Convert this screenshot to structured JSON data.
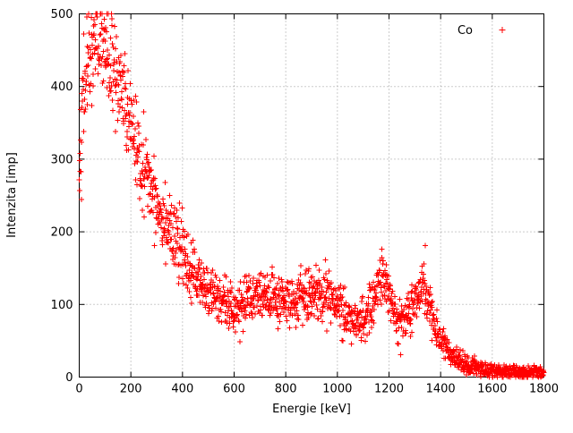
{
  "chart_data": {
    "type": "scatter",
    "title": "",
    "xlabel": "Energie [keV]",
    "ylabel": "Intenzita [imp]",
    "xlim": [
      0,
      1800
    ],
    "ylim": [
      0,
      500
    ],
    "xticks": [
      0,
      200,
      400,
      600,
      800,
      1000,
      1200,
      1400,
      1600,
      1800
    ],
    "yticks": [
      0,
      100,
      200,
      300,
      400,
      500
    ],
    "grid": true,
    "legend_position": "top-right-inside",
    "marker": "plus",
    "marker_color": "#ff0000",
    "series": [
      {
        "name": "Co",
        "color": "#ff0000",
        "sample_step_keV": 1,
        "noise_seed": 42,
        "noise_factor": 1.7,
        "envelope": [
          [
            0,
            300
          ],
          [
            5,
            330
          ],
          [
            20,
            400
          ],
          [
            40,
            445
          ],
          [
            60,
            460
          ],
          [
            80,
            465
          ],
          [
            100,
            450
          ],
          [
            120,
            435
          ],
          [
            150,
            405
          ],
          [
            180,
            370
          ],
          [
            210,
            335
          ],
          [
            240,
            300
          ],
          [
            270,
            268
          ],
          [
            300,
            242
          ],
          [
            330,
            220
          ],
          [
            360,
            198
          ],
          [
            390,
            175
          ],
          [
            420,
            155
          ],
          [
            450,
            138
          ],
          [
            480,
            125
          ],
          [
            510,
            115
          ],
          [
            540,
            107
          ],
          [
            570,
            100
          ],
          [
            600,
            96
          ],
          [
            630,
            98
          ],
          [
            660,
            104
          ],
          [
            690,
            112
          ],
          [
            720,
            108
          ],
          [
            760,
            103
          ],
          [
            800,
            104
          ],
          [
            840,
            108
          ],
          [
            880,
            112
          ],
          [
            920,
            114
          ],
          [
            960,
            112
          ],
          [
            1000,
            98
          ],
          [
            1040,
            84
          ],
          [
            1080,
            75
          ],
          [
            1110,
            80
          ],
          [
            1140,
            105
          ],
          [
            1173,
            148
          ],
          [
            1200,
            110
          ],
          [
            1230,
            80
          ],
          [
            1260,
            76
          ],
          [
            1290,
            92
          ],
          [
            1310,
            112
          ],
          [
            1332,
            128
          ],
          [
            1355,
            100
          ],
          [
            1380,
            70
          ],
          [
            1410,
            48
          ],
          [
            1440,
            32
          ],
          [
            1470,
            22
          ],
          [
            1500,
            16
          ],
          [
            1550,
            11
          ],
          [
            1600,
            9
          ],
          [
            1700,
            7
          ],
          [
            1800,
            6
          ]
        ]
      }
    ]
  }
}
